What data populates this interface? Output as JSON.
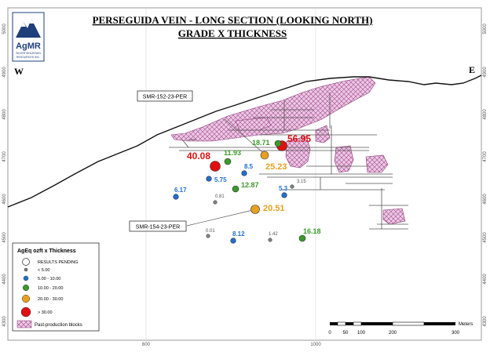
{
  "title": {
    "line1": "PERSEGUIDA VEIN - LONG SECTION (LOOKING NORTH)",
    "line2": "GRADE X THICKNESS"
  },
  "logo": {
    "name": "AgMR",
    "tagline1": "SILVER MOUNTAIN",
    "tagline2": "RESOURCES INC."
  },
  "compass": {
    "west": "W",
    "east": "E"
  },
  "elevation_labels": [
    "5000",
    "4900",
    "4800",
    "4700",
    "4600",
    "4500",
    "4400",
    "4300"
  ],
  "easting_labels": [
    "600",
    "1000"
  ],
  "drillholes": [
    {
      "name": "SMR-152-23-PER"
    },
    {
      "name": "SMR-154-23-PER"
    }
  ],
  "intercepts": [
    {
      "label": "56.95",
      "class": "> 30.00"
    },
    {
      "label": "40.08",
      "class": "> 30.00"
    },
    {
      "label": "25.23",
      "class": "20.00 - 30.00"
    },
    {
      "label": "20.51",
      "class": "20.00 - 30.00"
    },
    {
      "label": "18.71",
      "class": "10.00 - 20.00"
    },
    {
      "label": "16.18",
      "class": "10.00 - 20.00"
    },
    {
      "label": "12.87",
      "class": "10.00 - 20.00"
    },
    {
      "label": "11.93",
      "class": "10.00 - 20.00"
    },
    {
      "label": "8.5",
      "class": "5.00 - 10.00"
    },
    {
      "label": "8.12",
      "class": "5.00 - 10.00"
    },
    {
      "label": "6.17",
      "class": "5.00 - 10.00"
    },
    {
      "label": "5.75",
      "class": "5.00 - 10.00"
    },
    {
      "label": "5.3",
      "class": "5.00 - 10.00"
    },
    {
      "label": "3.15",
      "class": "< 5.00"
    },
    {
      "label": "1.42",
      "class": "< 5.00"
    },
    {
      "label": "0.81",
      "class": "< 5.00"
    },
    {
      "label": "0.01",
      "class": "< 5.00"
    }
  ],
  "legend": {
    "title": "AgEq ozft x Thickness",
    "items": [
      {
        "label": "RESULTS PENDING",
        "color": "#ffffff"
      },
      {
        "label": "< 5.00",
        "color": "#7f7f7f"
      },
      {
        "label": "5.00 - 10.00",
        "color": "#1f6fd0"
      },
      {
        "label": "10.00 - 20.00",
        "color": "#3a9a2a"
      },
      {
        "label": "20.00 - 30.00",
        "color": "#e8a020"
      },
      {
        "label": "> 30.00",
        "color": "#e01010"
      }
    ],
    "blocks_label": "Past-production blocks"
  },
  "scale_bar": {
    "labels": [
      "0",
      "50",
      "100",
      "200",
      "300"
    ],
    "unit": "Meters"
  },
  "colors": {
    "high": "#e01010",
    "medium": "#e8a020",
    "low": "#3a9a2a",
    "very_low": "#1f6fd0",
    "trace": "#7f7f7f",
    "blocks": "#e7c4df"
  }
}
